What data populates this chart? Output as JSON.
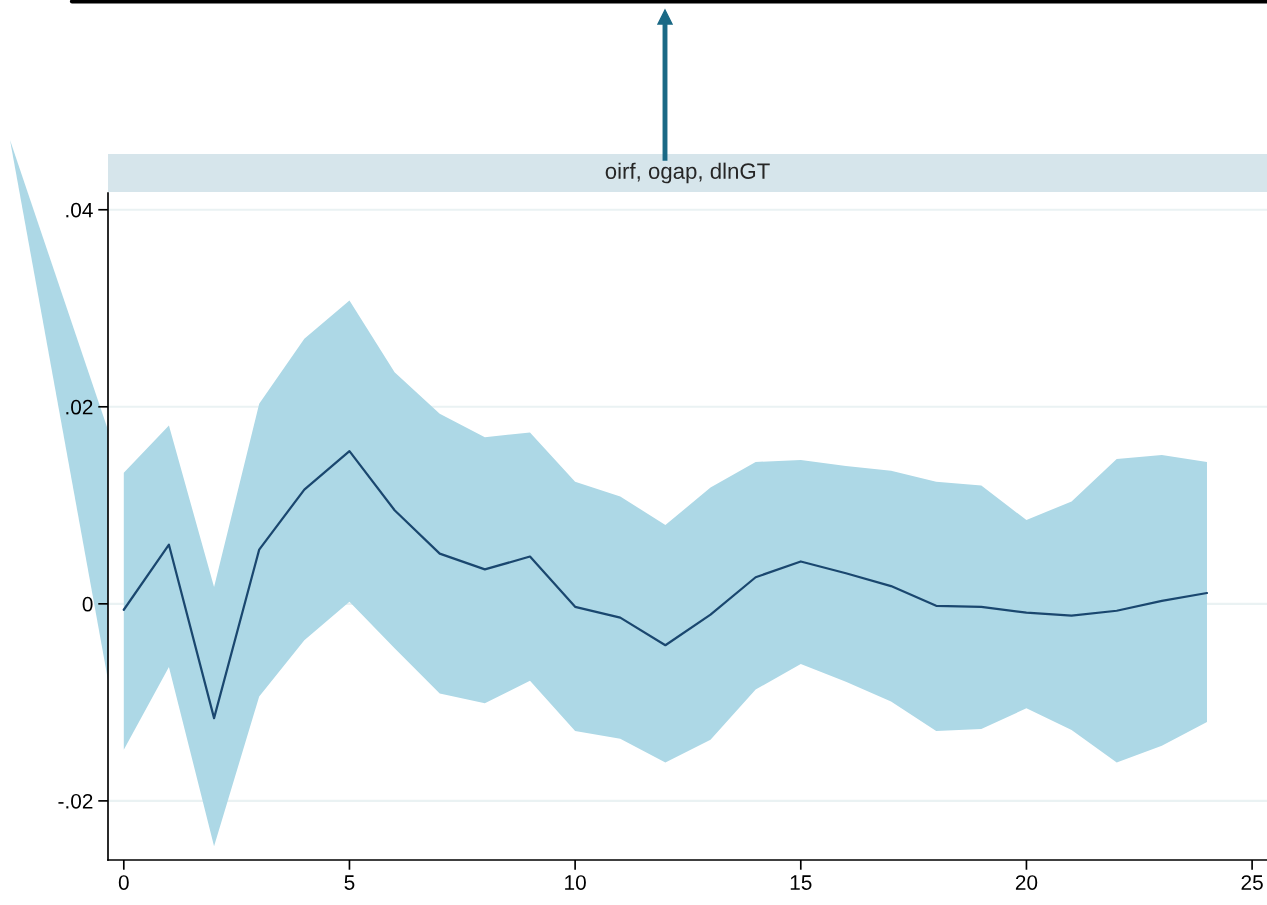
{
  "chart_data": {
    "type": "line",
    "title": "oirf, ogap, dlnGT",
    "x": [
      0,
      1,
      2,
      3,
      4,
      5,
      6,
      7,
      8,
      9,
      10,
      11,
      12,
      13,
      14,
      15,
      16,
      17,
      18,
      19,
      20,
      21,
      22,
      23,
      24
    ],
    "series": [
      {
        "color": "#1a476f",
        "values": [
          -0.0006,
          0.006,
          -0.0116,
          0.0055,
          0.0116,
          0.0155,
          0.0095,
          0.0051,
          0.0035,
          0.0048,
          -0.0003,
          -0.0014,
          -0.0042,
          -0.0011,
          0.0027,
          0.0043,
          0.0031,
          0.0018,
          -0.0002,
          -0.0003,
          -0.0009,
          -0.0012,
          -0.0007,
          0.0003,
          0.0011
        ],
        "lower": [
          -0.0148,
          -0.0064,
          -0.0246,
          -0.0094,
          -0.0037,
          0.0002,
          -0.0045,
          -0.0091,
          -0.0101,
          -0.0078,
          -0.0129,
          -0.0137,
          -0.0161,
          -0.0138,
          -0.0087,
          -0.0061,
          -0.0079,
          -0.0099,
          -0.0129,
          -0.0127,
          -0.0106,
          -0.0128,
          -0.0161,
          -0.0144,
          -0.012
        ],
        "upper": [
          0.0133,
          0.0181,
          0.0017,
          0.0203,
          0.0269,
          0.0308,
          0.0235,
          0.0193,
          0.0169,
          0.0174,
          0.0124,
          0.0109,
          0.008,
          0.0118,
          0.0144,
          0.0146,
          0.014,
          0.0135,
          0.0124,
          0.012,
          0.0085,
          0.0104,
          0.0147,
          0.0151,
          0.0144
        ]
      }
    ],
    "xlim": [
      -0.35,
      25.33
    ],
    "ylim": [
      -0.026,
      0.0417
    ],
    "xticks": [
      0,
      5,
      10,
      15,
      20,
      25
    ],
    "yticks": [
      {
        "value": -0.02,
        "label": "-.02"
      },
      0,
      {
        "value": 0.02,
        "label": ".02"
      },
      {
        "value": 0.04,
        "label": ".04"
      }
    ],
    "grid": "y"
  }
}
